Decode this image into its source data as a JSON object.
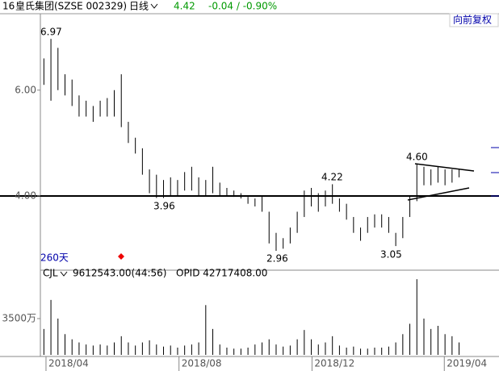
{
  "header": {
    "code": "16",
    "name": "皇氏集团(SZSE 002329)",
    "period": "日线",
    "price": "4.42",
    "change": "-0.04 / -0.90%",
    "adjust": "向前复权"
  },
  "chart_data": [
    {
      "type": "hilo",
      "days": "260天",
      "color": "#000000",
      "annotations": [
        "6.97",
        "3.96",
        "2.96",
        "4.22",
        "3.05",
        "4.60"
      ],
      "high": [
        6.6,
        6.97,
        6.8,
        6.3,
        6.2,
        5.9,
        5.8,
        5.7,
        5.8,
        5.85,
        6.0,
        6.3,
        5.4,
        5.1,
        4.9,
        4.5,
        4.4,
        4.3,
        4.35,
        4.3,
        4.45,
        4.55,
        4.35,
        4.3,
        4.55,
        4.25,
        4.15,
        4.1,
        4.05,
        3.98,
        3.95,
        4.0,
        3.7,
        3.3,
        3.2,
        3.4,
        3.7,
        4.1,
        4.15,
        4.05,
        4.1,
        4.22,
        3.95,
        3.85,
        3.6,
        3.4,
        3.6,
        3.65,
        3.65,
        3.6,
        3.3,
        3.6,
        4.0,
        4.6,
        4.55,
        4.5,
        4.55,
        4.5,
        4.5,
        4.5
      ],
      "low": [
        6.1,
        5.8,
        6.0,
        5.9,
        5.7,
        5.5,
        5.5,
        5.4,
        5.5,
        5.5,
        5.5,
        5.3,
        5.0,
        4.8,
        4.4,
        4.05,
        3.96,
        3.96,
        4.0,
        4.0,
        4.1,
        4.1,
        4.0,
        4.0,
        4.05,
        4.0,
        4.0,
        3.98,
        3.95,
        3.85,
        3.8,
        3.7,
        3.1,
        2.96,
        3.0,
        3.1,
        3.3,
        3.6,
        3.8,
        3.7,
        3.8,
        3.85,
        3.7,
        3.55,
        3.3,
        3.15,
        3.3,
        3.4,
        3.4,
        3.3,
        3.05,
        3.2,
        3.6,
        3.9,
        4.2,
        4.2,
        4.25,
        4.2,
        4.25,
        4.35
      ],
      "ylim": [
        2.67,
        7.4
      ],
      "yticks": [
        {
          "value": 6,
          "label": "6.00"
        },
        {
          "value": 4,
          "label": "4.00"
        }
      ],
      "xlim": [
        -0.5,
        61
      ],
      "xticks": [
        {
          "value": 0.3,
          "label": "2018/04"
        },
        {
          "value": 19.2,
          "label": "2018/08"
        },
        {
          "value": 38.1,
          "label": "2018/12"
        },
        {
          "value": 56.9,
          "label": "2019/04"
        }
      ]
    },
    {
      "type": "bar",
      "indicator": "CJL",
      "volume": "9612543.00(44:56)",
      "opid": "OPID 42717408.00",
      "color": "#000000",
      "values": [
        2500,
        5300,
        3500,
        2000,
        1500,
        1200,
        1000,
        900,
        1000,
        900,
        1200,
        1800,
        1200,
        900,
        1200,
        1400,
        1000,
        800,
        900,
        700,
        900,
        1000,
        1200,
        4800,
        2500,
        1000,
        700,
        600,
        600,
        700,
        1000,
        1200,
        1500,
        1000,
        800,
        900,
        1500,
        2400,
        1500,
        1000,
        1200,
        1800,
        900,
        700,
        800,
        600,
        600,
        700,
        700,
        800,
        1200,
        2000,
        3000,
        7300,
        3500,
        2500,
        2800,
        2000,
        1800,
        1200
      ],
      "ylim": [
        0,
        7390
      ],
      "yticks": [
        {
          "value": 3500,
          "label": "3500万"
        }
      ]
    }
  ]
}
